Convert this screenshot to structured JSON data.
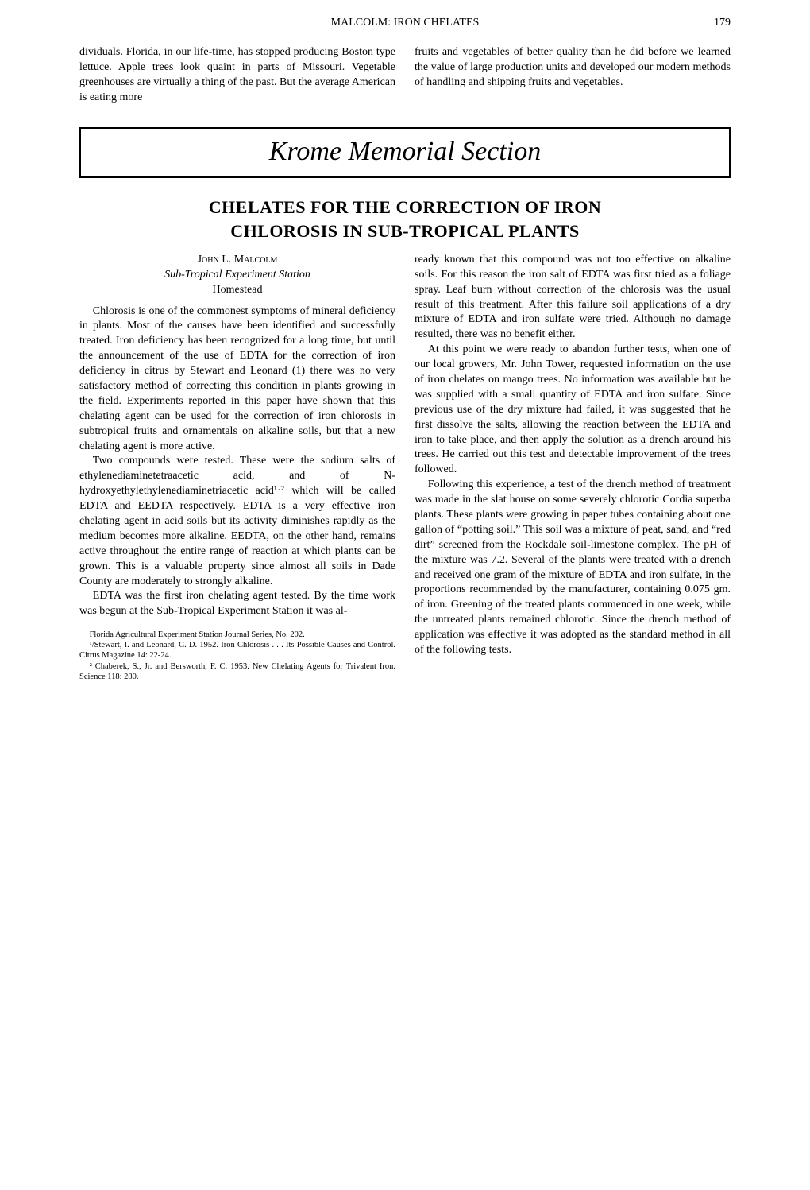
{
  "header": {
    "running_head": "MALCOLM: IRON CHELATES",
    "page_number": "179"
  },
  "upper_article": {
    "left_p": "dividuals. Florida, in our life-time, has stopped producing Boston type lettuce. Apple trees look quaint in parts of Missouri. Vegetable greenhouses are virtually a thing of the past. But the average American is eating more",
    "right_p": "fruits and vegetables of better quality than he did before we learned the value of large production units and developed our modern methods of handling and shipping fruits and vegetables."
  },
  "section_banner": "Krome Memorial Section",
  "article": {
    "title_line1": "CHELATES FOR THE CORRECTION OF IRON",
    "title_line2": "CHLOROSIS IN SUB-TROPICAL PLANTS",
    "author": "John L. Malcolm",
    "affiliation": "Sub-Tropical Experiment Station",
    "location": "Homestead",
    "left_col": {
      "p1": "Chlorosis is one of the commonest symptoms of mineral deficiency in plants. Most of the causes have been identified and successfully treated. Iron deficiency has been recognized for a long time, but until the announcement of the use of EDTA for the correction of iron deficiency in citrus by Stewart and Leonard (1) there was no very satisfactory method of correcting this condition in plants growing in the field. Experiments reported in this paper have shown that this chelating agent can be used for the correction of iron chlorosis in subtropical fruits and ornamentals on alkaline soils, but that a new chelating agent is more active.",
      "p2": "Two compounds were tested. These were the sodium salts of ethylenediaminetetraacetic acid, and of N-hydroxyethylethylenediaminetriacetic acid¹·² which will be called EDTA and EEDTA respectively. EDTA is a very effective iron chelating agent in acid soils but its activity diminishes rapidly as the medium becomes more alkaline. EEDTA, on the other hand, remains active throughout the entire range of reaction at which plants can be grown. This is a valuable property since almost all soils in Dade County are moderately to strongly alkaline.",
      "p3": "EDTA was the first iron chelating agent tested. By the time work was begun at the Sub-Tropical Experiment Station it was al-"
    },
    "right_col": {
      "p1": "ready known that this compound was not too effective on alkaline soils. For this reason the iron salt of EDTA was first tried as a foliage spray. Leaf burn without correction of the chlorosis was the usual result of this treatment. After this failure soil applications of a dry mixture of EDTA and iron sulfate were tried. Although no damage resulted, there was no benefit either.",
      "p2": "At this point we were ready to abandon further tests, when one of our local growers, Mr. John Tower, requested information on the use of iron chelates on mango trees. No information was available but he was supplied with a small quantity of EDTA and iron sulfate. Since previous use of the dry mixture had failed, it was suggested that he first dissolve the salts, allowing the reaction between the EDTA and iron to take place, and then apply the solution as a drench around his trees. He carried out this test and detectable improvement of the trees followed.",
      "p3": "Following this experience, a test of the drench method of treatment was made in the slat house on some severely chlorotic Cordia superba plants. These plants were growing in paper tubes containing about one gallon of “potting soil.” This soil was a mixture of peat, sand, and “red dirt” screened from the Rockdale soil-limestone complex. The pH of the mixture was 7.2. Several of the plants were treated with a drench and received one gram of the mixture of EDTA and iron sulfate, in the proportions recommended by the manufacturer, containing 0.075 gm. of iron. Greening of the treated plants commenced in one week, while the untreated plants remained chlorotic. Since the drench method of application was effective it was adopted as the standard method in all of the following tests."
    },
    "footnotes": {
      "f1": "Florida Agricultural Experiment Station Journal Series, No. 202.",
      "f2": "¹/Stewart, I. and Leonard, C. D. 1952. Iron Chlorosis . . . Its Possible Causes and Control. Citrus Magazine 14: 22-24.",
      "f3": "² Chaberek, S., Jr. and Bersworth, F. C. 1953. New Chelating Agents for Trivalent Iron. Science 118: 280."
    }
  }
}
